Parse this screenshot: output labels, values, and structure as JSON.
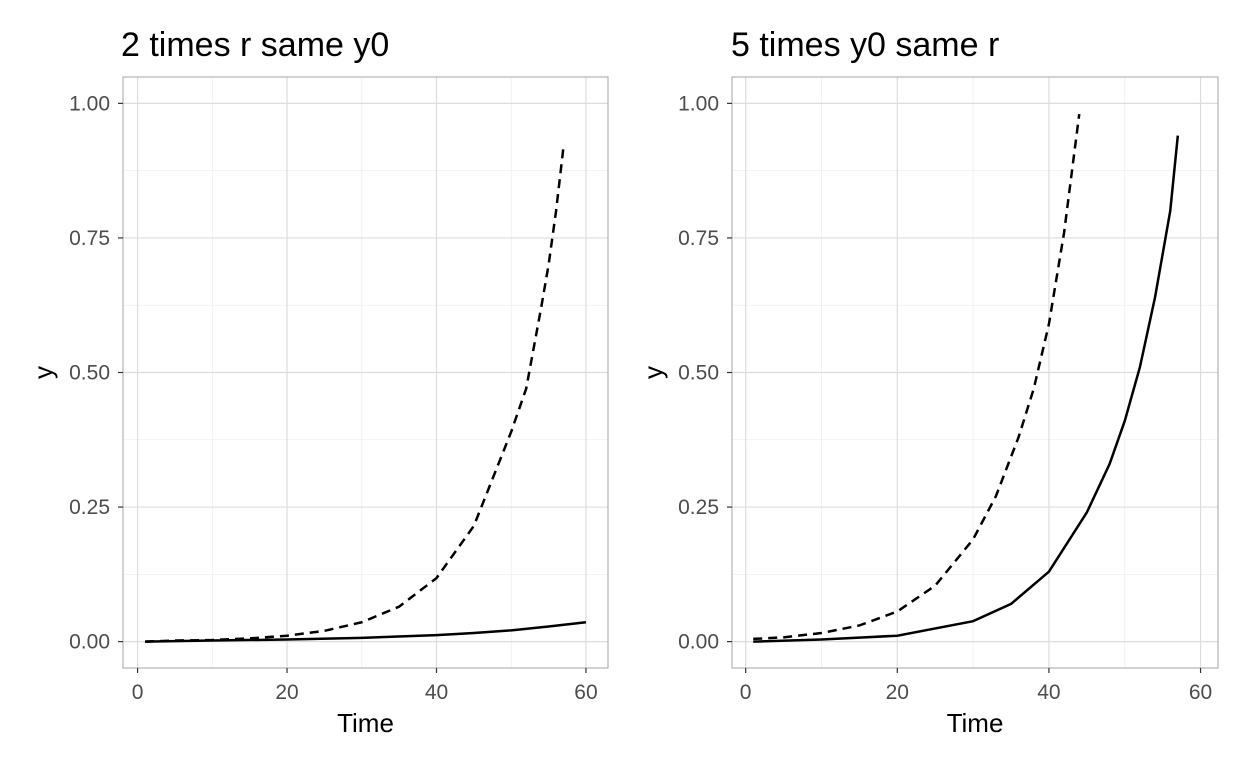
{
  "chart_data": [
    {
      "type": "line",
      "title": "2 times r same y0",
      "xlabel": "Time",
      "ylabel": "y",
      "xlim": [
        -1.95,
        62.95
      ],
      "ylim": [
        -0.049,
        1.049
      ],
      "xticks": [
        "0",
        "20",
        "40",
        "60"
      ],
      "xtick_values": [
        0,
        20,
        40,
        60
      ],
      "yticks": [
        "0.00",
        "0.25",
        "0.50",
        "0.75",
        "1.00"
      ],
      "ytick_values": [
        0,
        0.25,
        0.5,
        0.75,
        1.0
      ],
      "grid": true,
      "series": [
        {
          "style": "dashed",
          "x": [
            1,
            5,
            10,
            15,
            20,
            25,
            30,
            35,
            40,
            45,
            50,
            52,
            54,
            55,
            56,
            57
          ],
          "y": [
            0.0,
            0.002,
            0.003,
            0.006,
            0.011,
            0.02,
            0.036,
            0.065,
            0.118,
            0.215,
            0.39,
            0.47,
            0.62,
            0.7,
            0.8,
            0.92
          ]
        },
        {
          "style": "solid",
          "x": [
            1,
            10,
            20,
            30,
            40,
            45,
            50,
            55,
            60
          ],
          "y": [
            0.0,
            0.002,
            0.004,
            0.007,
            0.012,
            0.016,
            0.021,
            0.028,
            0.036
          ]
        }
      ]
    },
    {
      "type": "line",
      "title": "5 times y0 same r",
      "xlabel": "Time",
      "ylabel": "y",
      "xlim": [
        -1.8,
        62.3
      ],
      "ylim": [
        -0.049,
        1.049
      ],
      "xticks": [
        "0",
        "20",
        "40",
        "60"
      ],
      "xtick_values": [
        0,
        20,
        40,
        60
      ],
      "yticks": [
        "0.00",
        "0.25",
        "0.50",
        "0.75",
        "1.00"
      ],
      "ytick_values": [
        0,
        0.25,
        0.5,
        0.75,
        1.0
      ],
      "grid": true,
      "series": [
        {
          "style": "dashed",
          "x": [
            1,
            5,
            10,
            15,
            20,
            25,
            30,
            33,
            36,
            38,
            40,
            42,
            44
          ],
          "y": [
            0.005,
            0.008,
            0.016,
            0.03,
            0.056,
            0.104,
            0.19,
            0.27,
            0.38,
            0.47,
            0.59,
            0.76,
            0.98
          ]
        },
        {
          "style": "solid",
          "x": [
            1,
            10,
            20,
            30,
            35,
            40,
            45,
            48,
            50,
            52,
            54,
            56,
            57
          ],
          "y": [
            0.0,
            0.004,
            0.011,
            0.038,
            0.07,
            0.13,
            0.24,
            0.33,
            0.41,
            0.51,
            0.64,
            0.8,
            0.94
          ]
        }
      ]
    }
  ]
}
